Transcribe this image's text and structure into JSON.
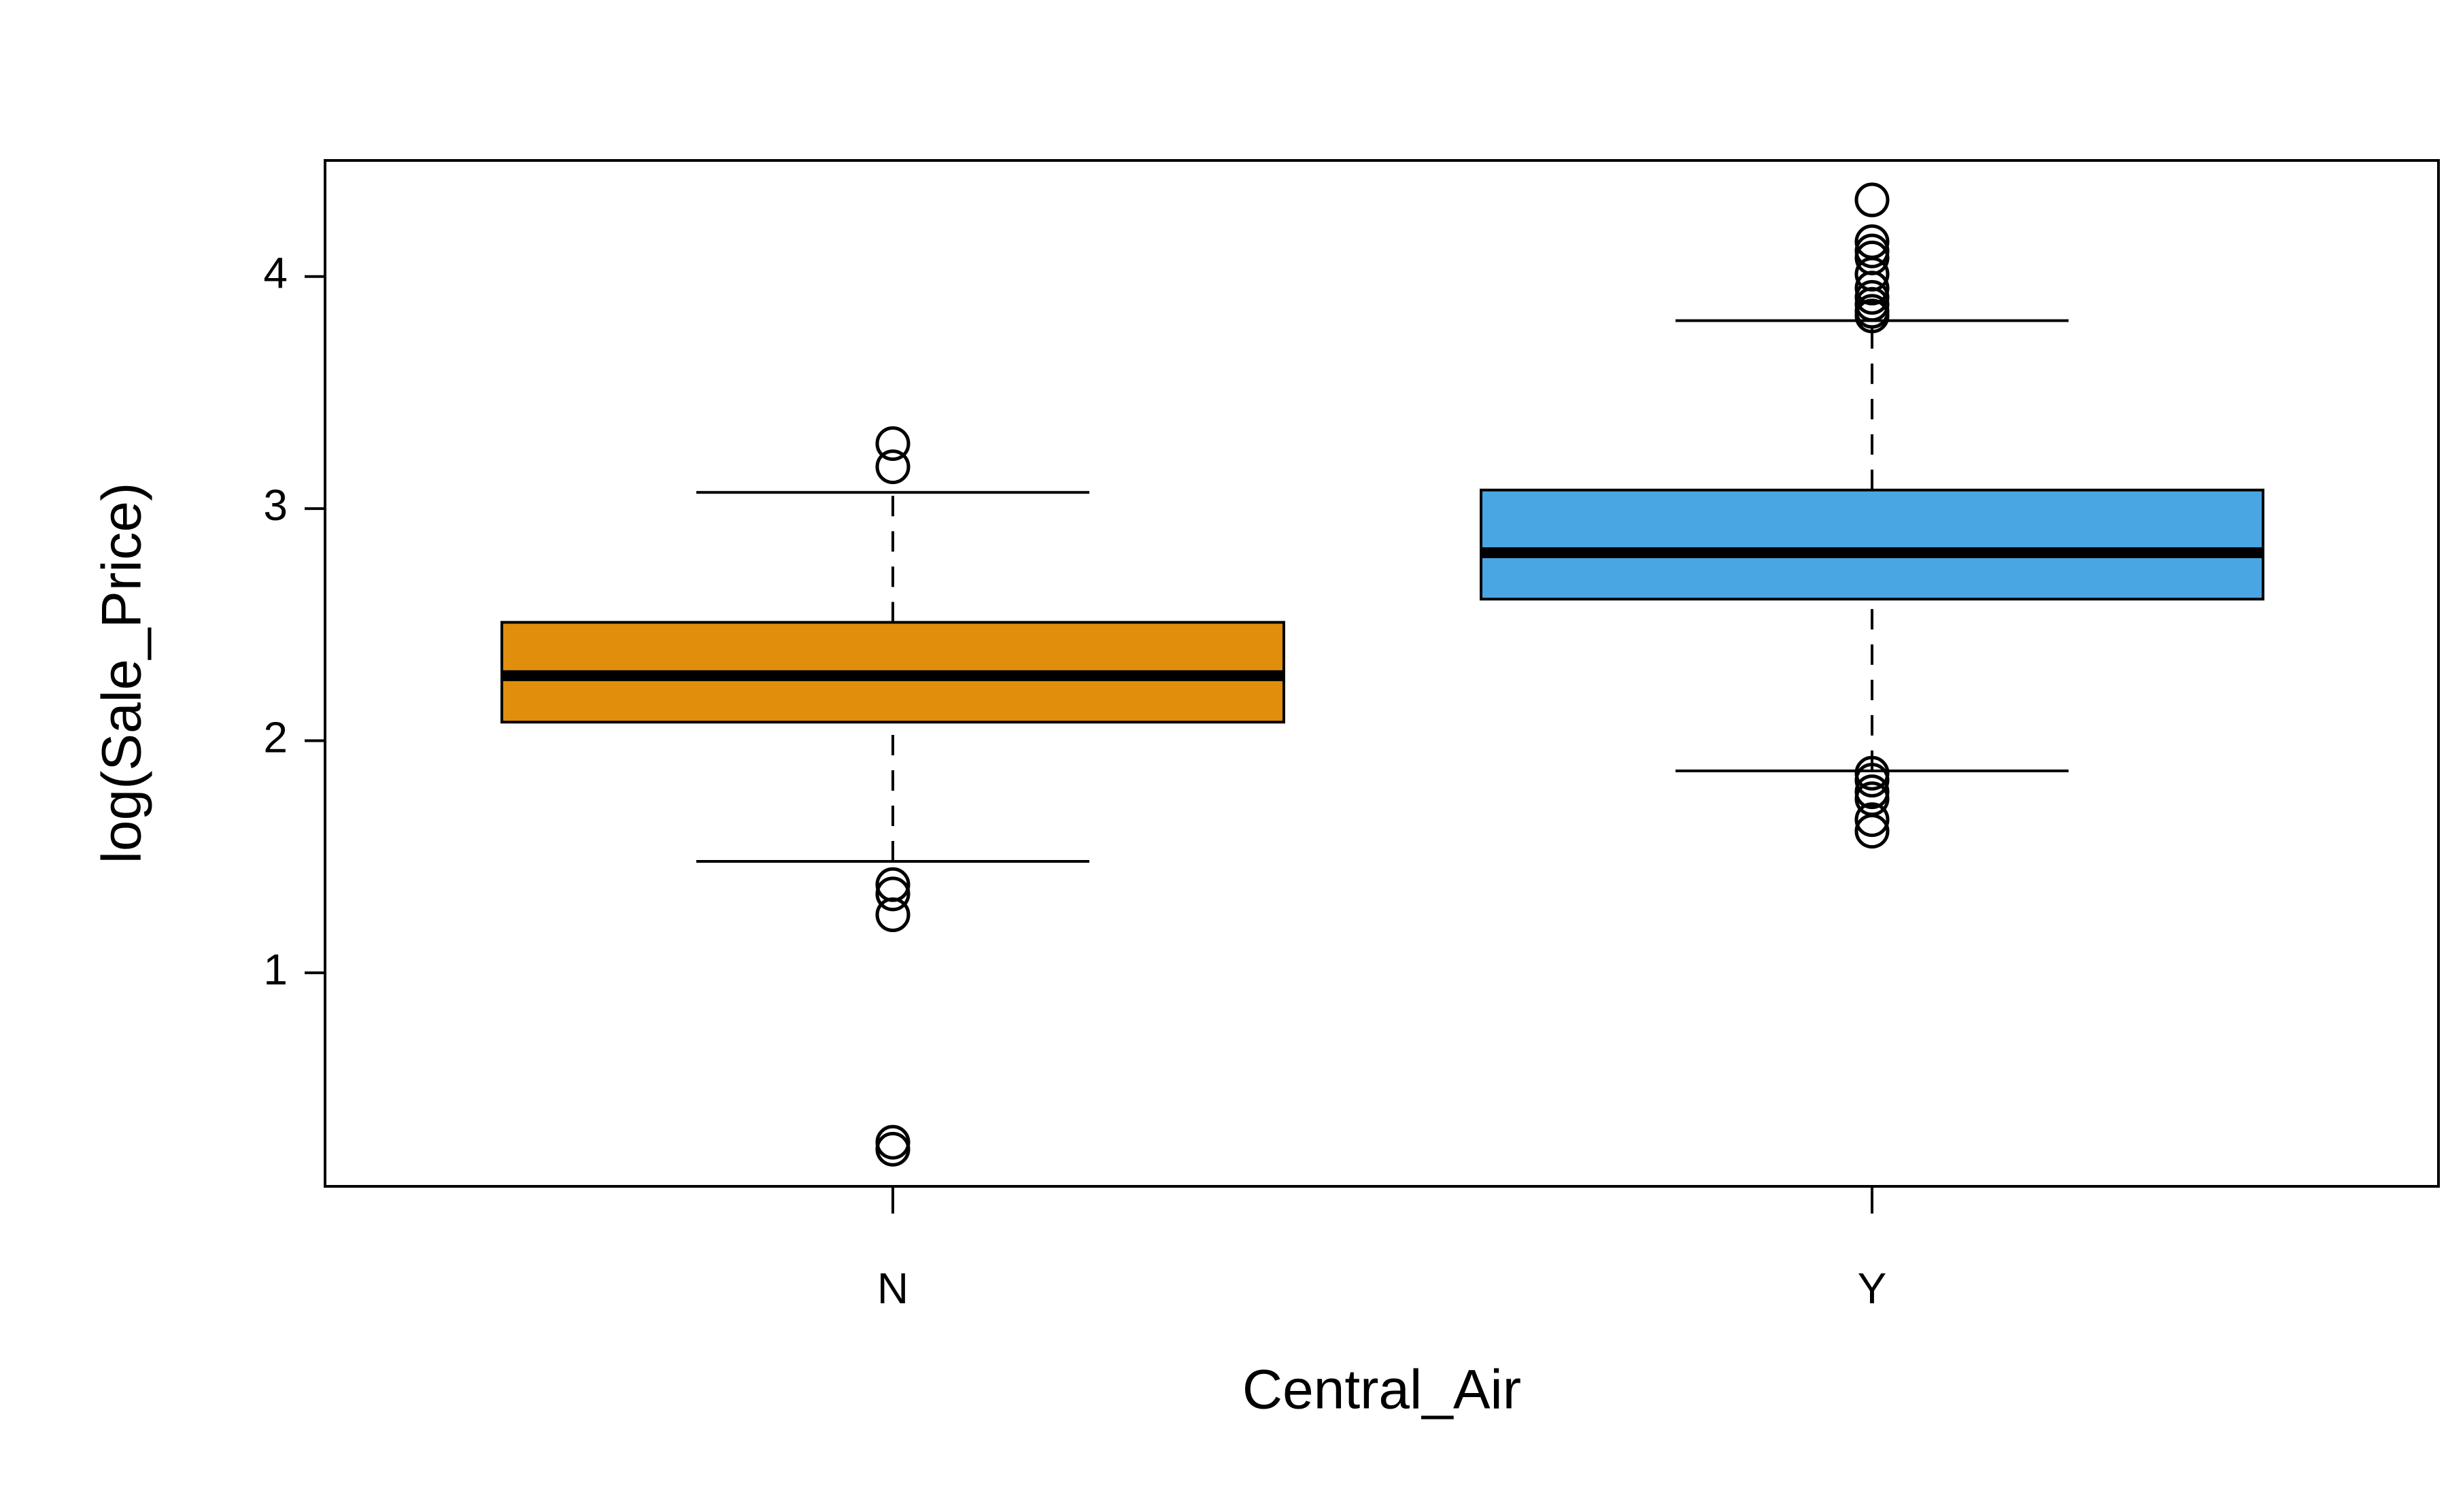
{
  "chart_data": {
    "type": "box",
    "x_label": "Central_Air",
    "y_label": "log(Sale_Price)",
    "categories": [
      "N",
      "Y"
    ],
    "colors": [
      "#e08e0b",
      "#4aa5e3"
    ],
    "boxes": [
      {
        "whislo": 1.48,
        "q1": 2.08,
        "med": 2.28,
        "q3": 2.51,
        "whishi": 3.07,
        "fliers": [
          3.28,
          3.18,
          1.38,
          1.34,
          1.25,
          0.27,
          0.24
        ]
      },
      {
        "whislo": 1.87,
        "q1": 2.61,
        "med": 2.81,
        "q3": 3.08,
        "whishi": 3.81,
        "fliers": [
          4.33,
          4.15,
          4.11,
          4.08,
          4.01,
          3.95,
          3.91,
          3.88,
          3.85,
          3.83,
          1.86,
          1.83,
          1.78,
          1.75,
          1.66,
          1.61
        ]
      }
    ],
    "ylim": [
      0.08,
      4.5
    ],
    "yticks": [
      1,
      2,
      3,
      4
    ]
  }
}
